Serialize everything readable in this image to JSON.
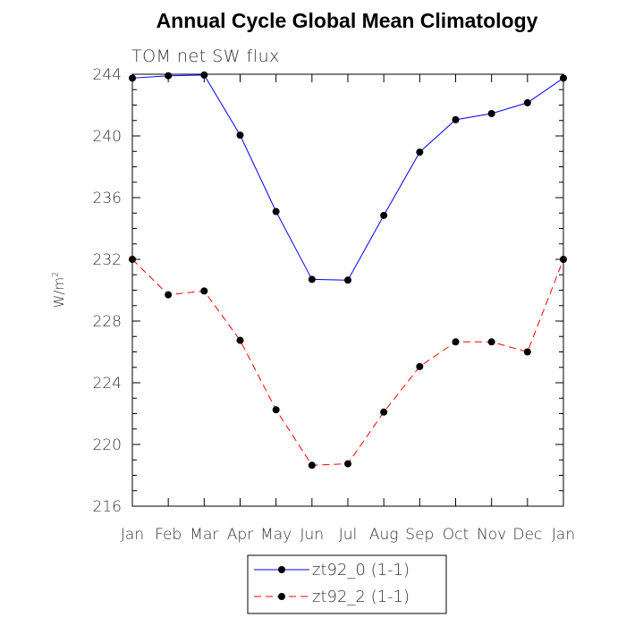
{
  "chart_data": {
    "type": "line",
    "title": "Annual Cycle Global Mean Climatology",
    "subtitle": "TOM net SW flux",
    "ylabel": "W/m",
    "ylabel_superscript": "2",
    "xlabel": "",
    "categories": [
      "Jan",
      "Feb",
      "Mar",
      "Apr",
      "May",
      "Jun",
      "Jul",
      "Aug",
      "Sep",
      "Oct",
      "Nov",
      "Dec",
      "Jan"
    ],
    "ylim": [
      216,
      244
    ],
    "yticks": [
      216,
      220,
      224,
      228,
      232,
      236,
      240,
      244
    ],
    "series": [
      {
        "name": "zt92_0 (1-1)",
        "color": "#0000ff",
        "dash": "solid",
        "values": [
          243.75,
          243.9,
          243.95,
          240.05,
          235.1,
          230.7,
          230.65,
          234.85,
          238.95,
          241.05,
          241.45,
          242.15,
          243.75
        ]
      },
      {
        "name": "zt92_2 (1-1)",
        "color": "#ff0000",
        "dash": "dashed",
        "values": [
          232.0,
          229.7,
          229.95,
          226.75,
          222.25,
          218.65,
          218.75,
          222.1,
          225.05,
          226.65,
          226.65,
          226.0,
          232.0
        ]
      }
    ],
    "legend_position": "bottom-center",
    "grid": false
  }
}
